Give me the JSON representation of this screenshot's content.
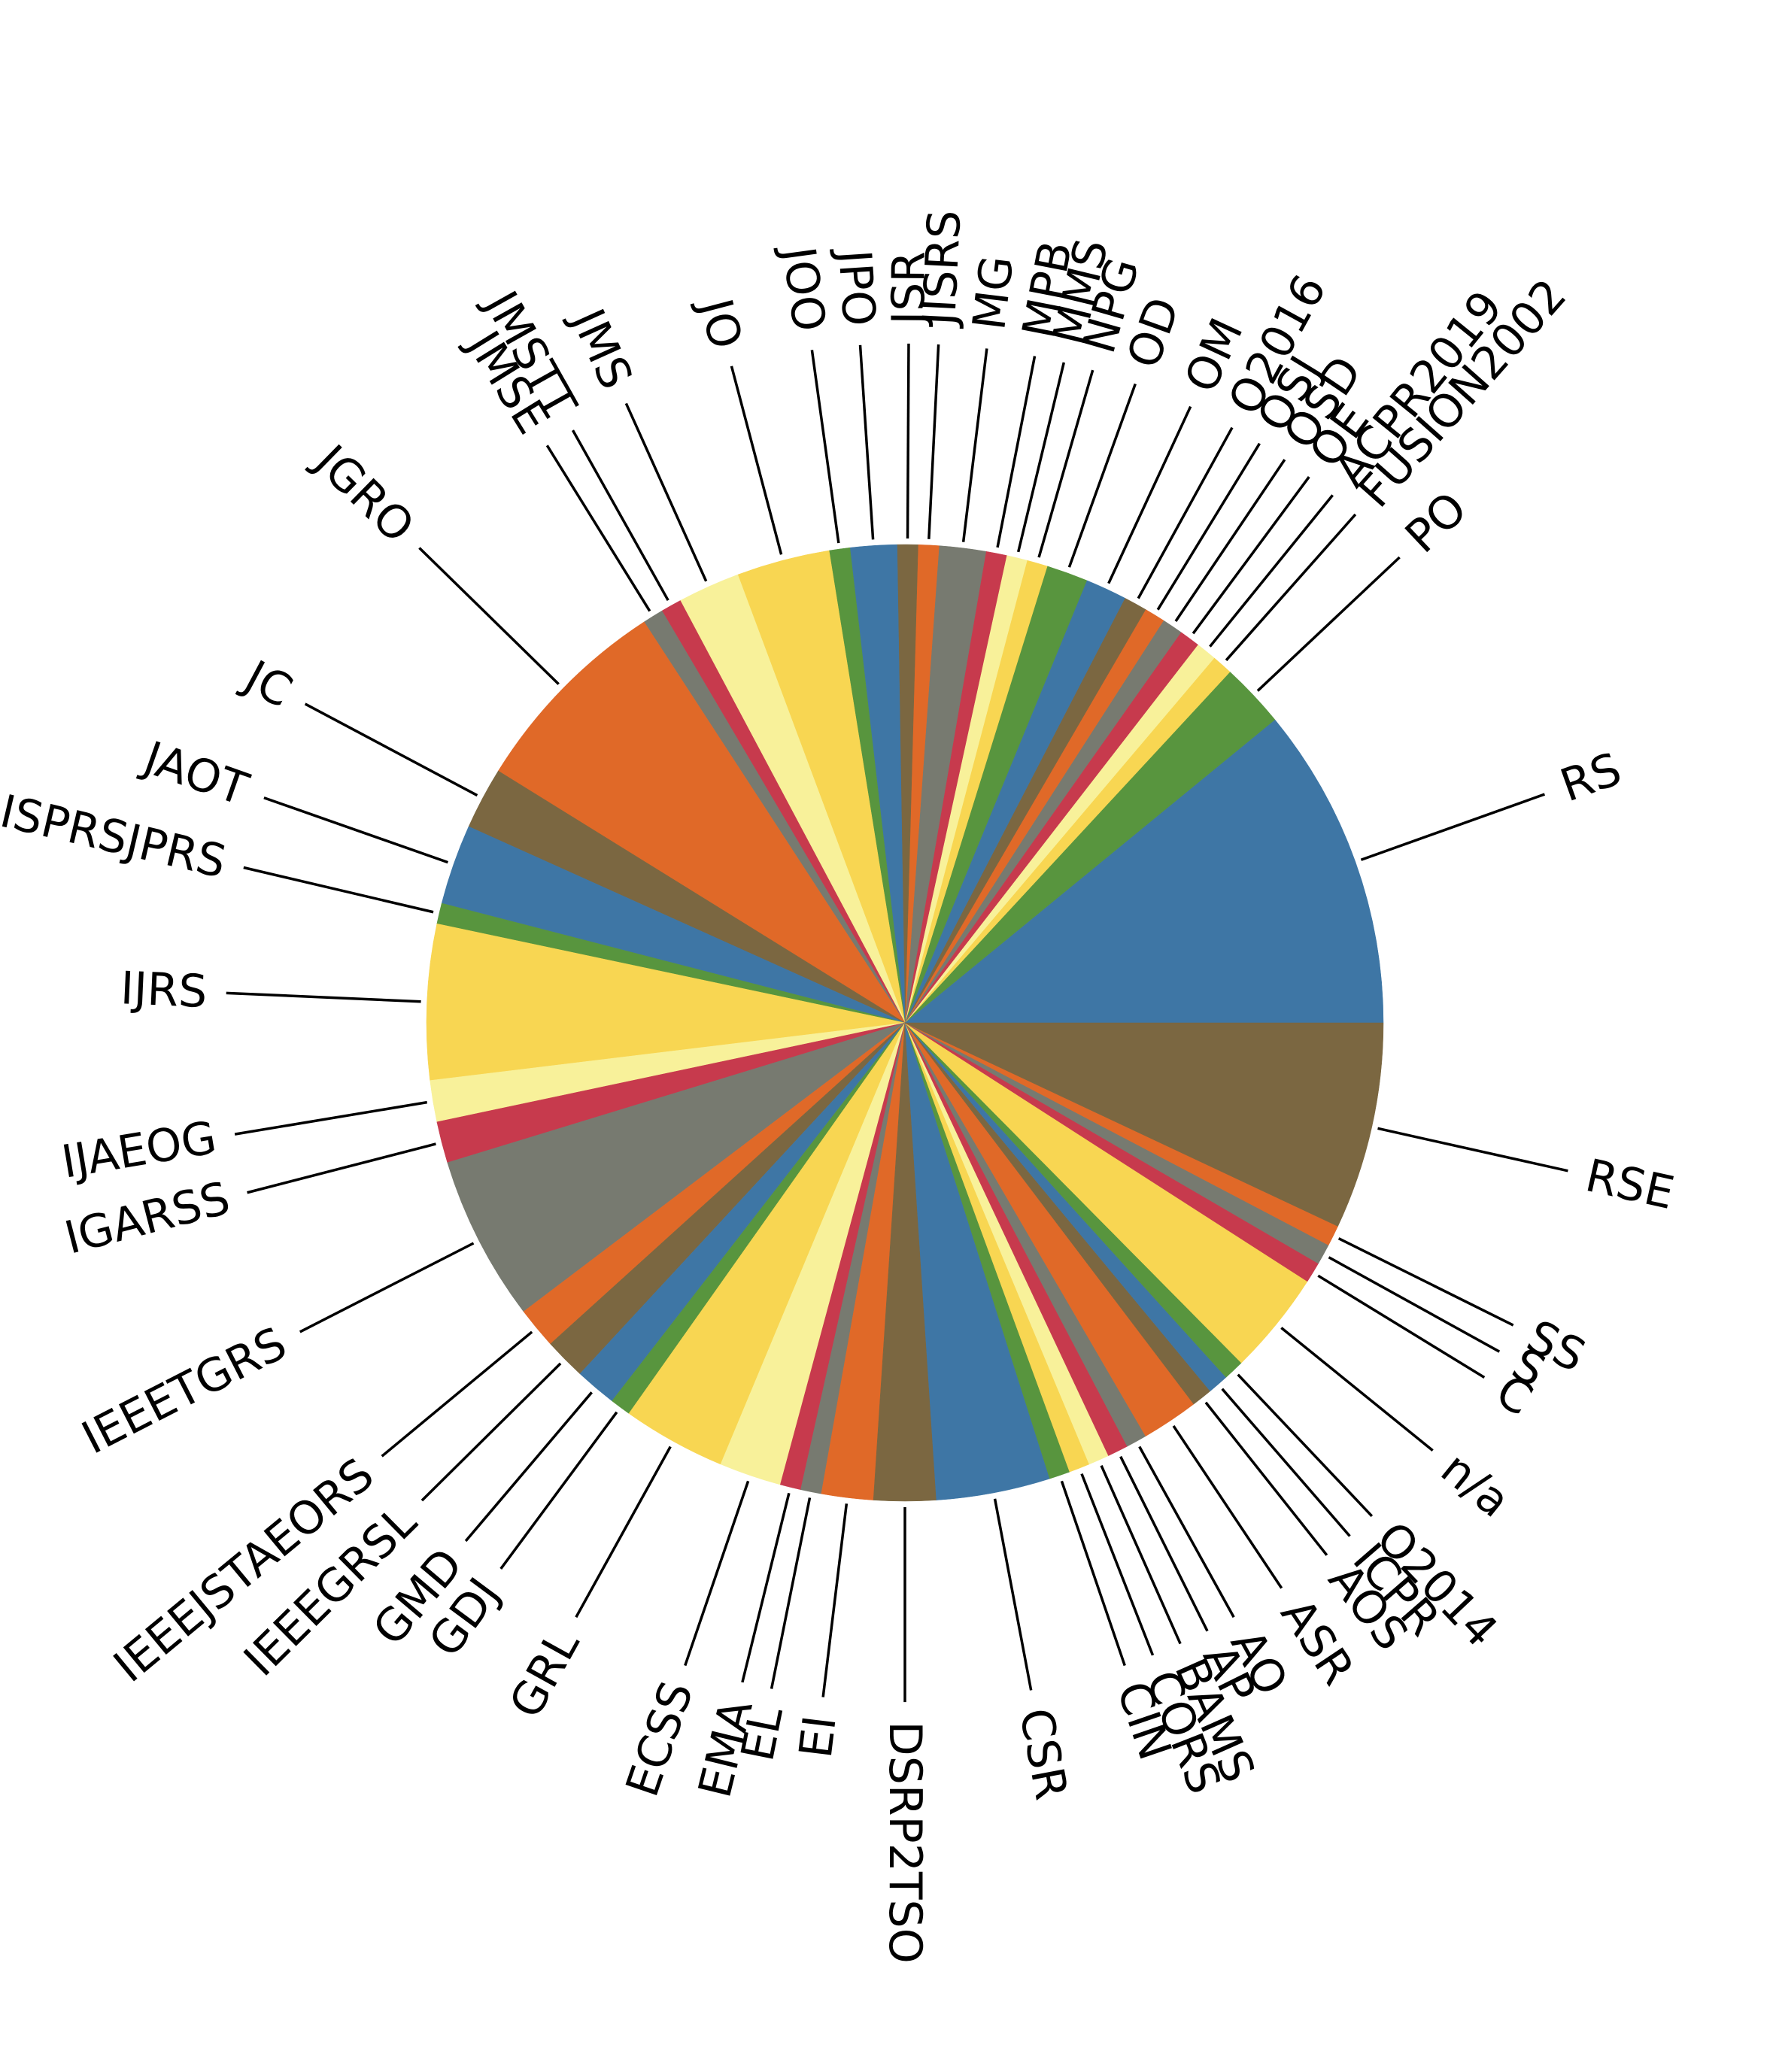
{
  "chart_data": {
    "type": "pie",
    "start_angle_deg": 0,
    "direction": "counterclockwise",
    "label_placement": "rotated-outside",
    "colors": [
      "#3e76a5",
      "#7b6741",
      "#e06928",
      "#777a70",
      "#c73a4d",
      "#f8f19a",
      "#f8d652",
      "#58953e"
    ],
    "slices": [
      {
        "label": "RS",
        "value": 12.5,
        "color": "#3e76a5"
      },
      {
        "label": "PO",
        "value": 2.5,
        "color": "#58953e"
      },
      {
        "label": "FUSION2002",
        "value": 0.8,
        "color": "#f8d652"
      },
      {
        "label": "ACPR2019",
        "value": 0.8,
        "color": "#f8f19a"
      },
      {
        "label": "OE",
        "value": 0.8,
        "color": "#c73a4d"
      },
      {
        "label": "OSD",
        "value": 0.8,
        "color": "#777a70"
      },
      {
        "label": "OSJ",
        "value": 0.8,
        "color": "#e06928"
      },
      {
        "label": "O2016",
        "value": 0.9,
        "color": "#7b6741"
      },
      {
        "label": "OM",
        "value": 1.6,
        "color": "#3e76a5"
      },
      {
        "label": "OD",
        "value": 1.6,
        "color": "#58953e"
      },
      {
        "label": "NPG",
        "value": 0.8,
        "color": "#f8d652"
      },
      {
        "label": "MMS",
        "value": 0.8,
        "color": "#f8f19a"
      },
      {
        "label": "MPB",
        "value": 0.8,
        "color": "#c73a4d"
      },
      {
        "label": "MG",
        "value": 1.8,
        "color": "#777a70"
      },
      {
        "label": "JISRS",
        "value": 0.8,
        "color": "#e06928"
      },
      {
        "label": "JSR",
        "value": 0.8,
        "color": "#7b6741"
      },
      {
        "label": "JPO",
        "value": 1.8,
        "color": "#3e76a5"
      },
      {
        "label": "JOO",
        "value": 0.8,
        "color": "#58953e"
      },
      {
        "label": "JO",
        "value": 3.6,
        "color": "#f8d652"
      },
      {
        "label": "JMS",
        "value": 2.4,
        "color": "#f8f19a"
      },
      {
        "label": "JMSTT",
        "value": 0.8,
        "color": "#c73a4d"
      },
      {
        "label": "JMSE",
        "value": 0.8,
        "color": "#777a70"
      },
      {
        "label": "JGRO",
        "value": 8.0,
        "color": "#e06928"
      },
      {
        "label": "JC",
        "value": 2.4,
        "color": "#7b6741"
      },
      {
        "label": "JAOT",
        "value": 3.1,
        "color": "#3e76a5"
      },
      {
        "label": "ISPRSJPRS",
        "value": 0.8,
        "color": "#58953e"
      },
      {
        "label": "IJRS",
        "value": 6.0,
        "color": "#f8d652"
      },
      {
        "label": "IJAEOG",
        "value": 1.6,
        "color": "#f8f19a"
      },
      {
        "label": "IGARSS",
        "value": 1.6,
        "color": "#c73a4d"
      },
      {
        "label": "IEEETGRS",
        "value": 6.4,
        "color": "#777a70"
      },
      {
        "label": "IEEEJSTAEORS",
        "value": 1.6,
        "color": "#e06928"
      },
      {
        "label": "IEEEGRSL",
        "value": 1.6,
        "color": "#7b6741"
      },
      {
        "label": "GMD",
        "value": 1.6,
        "color": "#3e76a5"
      },
      {
        "label": "GDJ",
        "value": 0.8,
        "color": "#58953e"
      },
      {
        "label": "GRL",
        "value": 4.0,
        "color": "#f8d652"
      },
      {
        "label": "ECSS",
        "value": 2.4,
        "color": "#f8f19a"
      },
      {
        "label": "EMA",
        "value": 0.8,
        "color": "#c73a4d"
      },
      {
        "label": "EL",
        "value": 0.8,
        "color": "#777a70"
      },
      {
        "label": "EI",
        "value": 2.0,
        "color": "#e06928"
      },
      {
        "label": "DSRP2TSO",
        "value": 2.4,
        "color": "#7b6741"
      },
      {
        "label": "CSR",
        "value": 4.4,
        "color": "#3e76a5"
      },
      {
        "label": "CIN",
        "value": 0.8,
        "color": "#58953e"
      },
      {
        "label": "CORS",
        "value": 0.8,
        "color": "#f8d652"
      },
      {
        "label": "BAMS",
        "value": 0.8,
        "color": "#f8f19a"
      },
      {
        "label": "AP",
        "value": 0.8,
        "color": "#c73a4d"
      },
      {
        "label": "AO",
        "value": 0.8,
        "color": "#777a70"
      },
      {
        "label": "ASR",
        "value": 2.2,
        "color": "#e06928"
      },
      {
        "label": "AOS",
        "value": 0.8,
        "color": "#7b6741"
      },
      {
        "label": "ICPR",
        "value": 0.8,
        "color": "#3e76a5"
      },
      {
        "label": "O2014",
        "value": 0.8,
        "color": "#58953e"
      },
      {
        "label": "n/a",
        "value": 4.0,
        "color": "#f8d652"
      },
      {
        "label": "C",
        "value": 0.8,
        "color": "#c73a4d"
      },
      {
        "label": "S",
        "value": 0.8,
        "color": "#777a70"
      },
      {
        "label": "SS",
        "value": 0.8,
        "color": "#e06928"
      },
      {
        "label": "RSE",
        "value": 8.0,
        "color": "#7b6741"
      }
    ]
  }
}
